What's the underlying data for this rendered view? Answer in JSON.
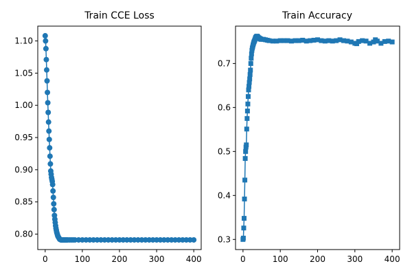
{
  "figure": {
    "background": "#ffffff",
    "series_color": "#1f77b4"
  },
  "chart_data": [
    {
      "type": "line",
      "title": "Train CCE Loss",
      "xlabel": "",
      "ylabel": "",
      "marker": "circle",
      "xlim": [
        -20,
        420
      ],
      "ylim": [
        0.776,
        1.123
      ],
      "xticks": [
        0,
        100,
        200,
        300,
        400
      ],
      "yticks": [
        0.8,
        0.85,
        0.9,
        0.95,
        1.0,
        1.05,
        1.1
      ],
      "ytick_labels": [
        "0.80",
        "0.85",
        "0.90",
        "0.95",
        "1.00",
        "1.05",
        "1.10"
      ],
      "grid": false,
      "series": [
        {
          "x": [
            0,
            1,
            2,
            3,
            4,
            5,
            6,
            7,
            8,
            9,
            10,
            11,
            12,
            13,
            14,
            15,
            16,
            17,
            18,
            19,
            20,
            21,
            22,
            23,
            24,
            25,
            26,
            27,
            28,
            29,
            30,
            31,
            32,
            33,
            34,
            35,
            36,
            37,
            38,
            39,
            40,
            42,
            44,
            46,
            48,
            50,
            52,
            54,
            56,
            58,
            60,
            65,
            70,
            75,
            80,
            90,
            100,
            110,
            120,
            130,
            140,
            150,
            160,
            170,
            180,
            190,
            200,
            210,
            220,
            230,
            240,
            250,
            260,
            270,
            280,
            290,
            300,
            310,
            320,
            330,
            340,
            350,
            360,
            370,
            380,
            390,
            400
          ],
          "y": [
            1.108,
            1.1,
            1.088,
            1.071,
            1.055,
            1.038,
            1.02,
            1.004,
            0.989,
            0.974,
            0.96,
            0.947,
            0.934,
            0.921,
            0.909,
            0.898,
            0.893,
            0.888,
            0.885,
            0.882,
            0.877,
            0.867,
            0.857,
            0.847,
            0.838,
            0.829,
            0.823,
            0.818,
            0.813,
            0.809,
            0.806,
            0.803,
            0.801,
            0.799,
            0.797,
            0.796,
            0.795,
            0.794,
            0.793,
            0.792,
            0.792,
            0.791,
            0.791,
            0.791,
            0.791,
            0.791,
            0.791,
            0.791,
            0.791,
            0.791,
            0.791,
            0.791,
            0.791,
            0.791,
            0.791,
            0.791,
            0.791,
            0.791,
            0.791,
            0.791,
            0.791,
            0.791,
            0.791,
            0.791,
            0.791,
            0.791,
            0.791,
            0.791,
            0.791,
            0.791,
            0.791,
            0.791,
            0.791,
            0.791,
            0.791,
            0.791,
            0.791,
            0.791,
            0.791,
            0.791,
            0.791,
            0.791,
            0.791,
            0.791,
            0.791,
            0.791,
            0.791
          ]
        }
      ]
    },
    {
      "type": "line",
      "title": "Train Accuracy",
      "xlabel": "",
      "ylabel": "",
      "marker": "square",
      "xlim": [
        -20,
        420
      ],
      "ylim": [
        0.277,
        0.785
      ],
      "xticks": [
        0,
        100,
        200,
        300,
        400
      ],
      "yticks": [
        0.3,
        0.4,
        0.5,
        0.6,
        0.7
      ],
      "ytick_labels": [
        "0.3",
        "0.4",
        "0.5",
        "0.6",
        "0.7"
      ],
      "grid": false,
      "series": [
        {
          "x": [
            0,
            1,
            2,
            3,
            4,
            5,
            6,
            7,
            8,
            9,
            10,
            11,
            12,
            13,
            14,
            15,
            16,
            17,
            18,
            19,
            20,
            21,
            22,
            23,
            24,
            25,
            26,
            27,
            28,
            29,
            30,
            31,
            32,
            33,
            34,
            35,
            36,
            37,
            38,
            39,
            40,
            41,
            42,
            43,
            44,
            45,
            46,
            47,
            48,
            50,
            55,
            60,
            65,
            70,
            80,
            90,
            100,
            110,
            120,
            130,
            140,
            150,
            160,
            170,
            180,
            190,
            200,
            210,
            220,
            230,
            240,
            250,
            260,
            270,
            280,
            290,
            300,
            305,
            310,
            320,
            330,
            340,
            350,
            355,
            360,
            370,
            380,
            390,
            400
          ],
          "y": [
            0.3,
            0.303,
            0.326,
            0.348,
            0.392,
            0.435,
            0.484,
            0.5,
            0.51,
            0.515,
            0.551,
            0.575,
            0.592,
            0.608,
            0.625,
            0.64,
            0.648,
            0.657,
            0.665,
            0.675,
            0.685,
            0.7,
            0.712,
            0.722,
            0.73,
            0.735,
            0.738,
            0.742,
            0.745,
            0.748,
            0.75,
            0.752,
            0.754,
            0.757,
            0.759,
            0.76,
            0.761,
            0.762,
            0.762,
            0.761,
            0.76,
            0.759,
            0.758,
            0.758,
            0.757,
            0.757,
            0.756,
            0.756,
            0.755,
            0.755,
            0.755,
            0.754,
            0.753,
            0.752,
            0.751,
            0.751,
            0.752,
            0.752,
            0.752,
            0.751,
            0.752,
            0.752,
            0.753,
            0.751,
            0.752,
            0.753,
            0.754,
            0.752,
            0.751,
            0.752,
            0.751,
            0.752,
            0.754,
            0.752,
            0.751,
            0.749,
            0.746,
            0.745,
            0.75,
            0.752,
            0.751,
            0.746,
            0.749,
            0.754,
            0.751,
            0.746,
            0.75,
            0.751,
            0.749
          ]
        }
      ]
    }
  ]
}
